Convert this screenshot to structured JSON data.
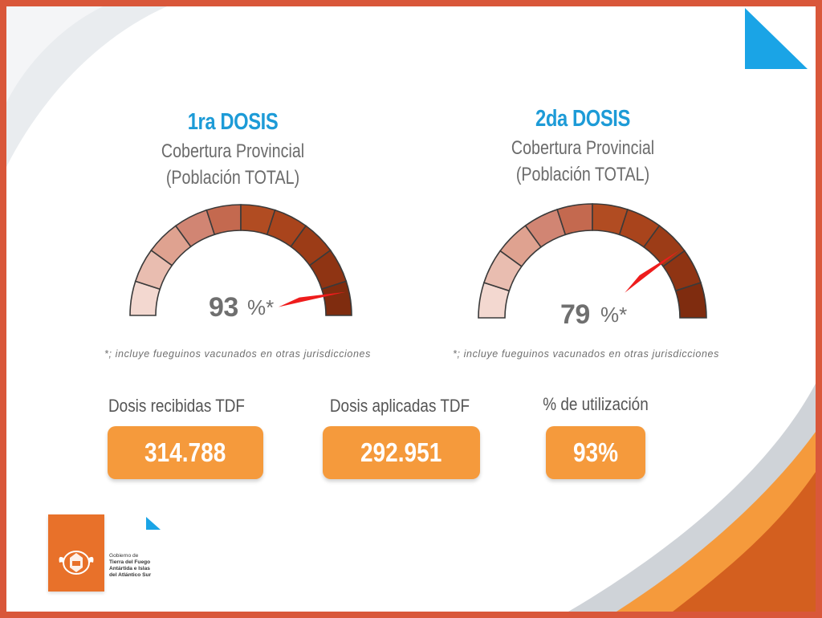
{
  "colors": {
    "accent_blue": "#1d9bd7",
    "orange": "#f59a3c",
    "needle": "#ee1c1c",
    "frame": "#d9573a",
    "gray_text": "#6f6f6f"
  },
  "gauges": [
    {
      "title": "1ra DOSIS",
      "subtitle_line1": "Cobertura Provincial",
      "subtitle_line2": "(Población TOTAL)",
      "value": 93,
      "value_text": "93",
      "percent_symbol": "%*",
      "footnote": "*; incluye fueguinos vacunados en otras jurisdicciones"
    },
    {
      "title": "2da DOSIS",
      "subtitle_line1": "Cobertura Provincial",
      "subtitle_line2": "(Población TOTAL)",
      "value": 79,
      "value_text": "79",
      "percent_symbol": "%*",
      "footnote": "*; incluye fueguinos vacunados en otras jurisdicciones"
    }
  ],
  "segment_colors": [
    "#f3d8d0",
    "#e9bdb0",
    "#dfa290",
    "#d18573",
    "#c4694f",
    "#b14c22",
    "#a9441c",
    "#9c3c17",
    "#8f3413",
    "#7f2c0f"
  ],
  "stats": [
    {
      "label": "Dosis recibidas TDF",
      "value": "314.788"
    },
    {
      "label": "Dosis aplicadas TDF",
      "value": "292.951"
    },
    {
      "label": "% de utilización",
      "value": "93%"
    }
  ],
  "logo": {
    "line1": "Gobierno de",
    "line2": "Tierra del Fuego",
    "line3": "Antártida e Islas",
    "line4": "del Atlántico Sur"
  }
}
